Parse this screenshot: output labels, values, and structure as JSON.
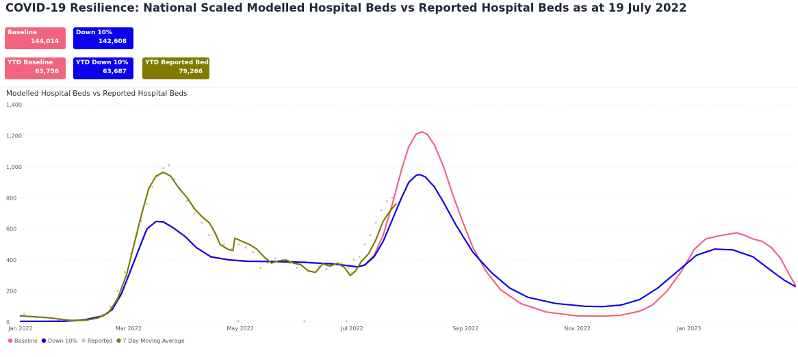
{
  "page": {
    "title": "COVID-19 Resilience: National Scaled Modelled Hospital Beds vs Reported Hospital Beds as at 19 July 2022"
  },
  "cards": [
    {
      "label": "Baseline",
      "value": "144,014",
      "color": "#f0647d"
    },
    {
      "label": "Down 10%",
      "value": "142,608",
      "color": "#0c00ec"
    },
    {
      "label": "YTD Baseline",
      "value": "63,756",
      "color": "#f0647d"
    },
    {
      "label": "YTD Down 10%",
      "value": "63,687",
      "color": "#0c00ec"
    },
    {
      "label": "YTD Reported Beds",
      "value": "79,266",
      "color": "#7f7a00"
    }
  ],
  "chart_data": {
    "type": "line",
    "title": "Modelled Hospital Beds vs Reported Hospital Beds",
    "xlabel": "",
    "ylabel": "",
    "xlim": [
      "2022-01-01",
      "2023-02-28"
    ],
    "ylim": [
      0,
      1400
    ],
    "y_ticks": [
      0,
      200,
      400,
      600,
      800,
      1000,
      1200,
      1400
    ],
    "y_tick_labels": [
      "0",
      "200",
      "400",
      "600",
      "800",
      "1,000",
      "1,200",
      "1,400"
    ],
    "x_ticks": [
      "2022-01-01",
      "2022-03-01",
      "2022-05-01",
      "2022-07-01",
      "2022-09-01",
      "2022-11-01",
      "2023-01-01"
    ],
    "x_tick_labels": [
      "Jan 2022",
      "Mar 2022",
      "May 2022",
      "Jul 2022",
      "Sep 2022",
      "Nov 2022",
      "Jan 2023"
    ],
    "grid": true,
    "legend_position": "bottom-left",
    "series": [
      {
        "name": "Baseline",
        "color": "#f0647d",
        "style": "line",
        "points": [
          [
            "2022-01-01",
            5
          ],
          [
            "2022-01-15",
            5
          ],
          [
            "2022-01-25",
            6
          ],
          [
            "2022-02-05",
            15
          ],
          [
            "2022-02-15",
            40
          ],
          [
            "2022-02-20",
            80
          ],
          [
            "2022-02-25",
            180
          ],
          [
            "2022-03-02",
            330
          ],
          [
            "2022-03-07",
            480
          ],
          [
            "2022-03-11",
            600
          ],
          [
            "2022-03-16",
            648
          ],
          [
            "2022-03-20",
            645
          ],
          [
            "2022-03-25",
            610
          ],
          [
            "2022-04-01",
            550
          ],
          [
            "2022-04-07",
            480
          ],
          [
            "2022-04-15",
            420
          ],
          [
            "2022-04-25",
            400
          ],
          [
            "2022-05-05",
            392
          ],
          [
            "2022-05-20",
            390
          ],
          [
            "2022-06-05",
            385
          ],
          [
            "2022-06-20",
            375
          ],
          [
            "2022-06-30",
            362
          ],
          [
            "2022-07-04",
            355
          ],
          [
            "2022-07-08",
            370
          ],
          [
            "2022-07-13",
            430
          ],
          [
            "2022-07-18",
            560
          ],
          [
            "2022-07-23",
            760
          ],
          [
            "2022-07-28",
            980
          ],
          [
            "2022-08-01",
            1130
          ],
          [
            "2022-08-05",
            1210
          ],
          [
            "2022-08-08",
            1225
          ],
          [
            "2022-08-11",
            1210
          ],
          [
            "2022-08-15",
            1140
          ],
          [
            "2022-08-20",
            1000
          ],
          [
            "2022-08-25",
            820
          ],
          [
            "2022-08-30",
            660
          ],
          [
            "2022-09-05",
            480
          ],
          [
            "2022-09-12",
            330
          ],
          [
            "2022-09-20",
            210
          ],
          [
            "2022-10-01",
            120
          ],
          [
            "2022-10-15",
            65
          ],
          [
            "2022-11-01",
            40
          ],
          [
            "2022-11-15",
            38
          ],
          [
            "2022-11-25",
            45
          ],
          [
            "2022-12-05",
            70
          ],
          [
            "2022-12-12",
            110
          ],
          [
            "2022-12-20",
            200
          ],
          [
            "2022-12-28",
            330
          ],
          [
            "2023-01-04",
            470
          ],
          [
            "2023-01-10",
            535
          ],
          [
            "2023-01-17",
            555
          ],
          [
            "2023-01-22",
            565
          ],
          [
            "2023-01-27",
            575
          ],
          [
            "2023-01-31",
            560
          ],
          [
            "2023-02-05",
            535
          ],
          [
            "2023-02-10",
            520
          ],
          [
            "2023-02-15",
            480
          ],
          [
            "2023-02-20",
            410
          ],
          [
            "2023-02-25",
            300
          ],
          [
            "2023-02-28",
            240
          ]
        ]
      },
      {
        "name": "Down 10%",
        "color": "#0c00ec",
        "style": "line",
        "points": [
          [
            "2022-01-01",
            5
          ],
          [
            "2022-01-15",
            5
          ],
          [
            "2022-01-25",
            6
          ],
          [
            "2022-02-05",
            15
          ],
          [
            "2022-02-15",
            40
          ],
          [
            "2022-02-20",
            80
          ],
          [
            "2022-02-25",
            180
          ],
          [
            "2022-03-02",
            330
          ],
          [
            "2022-03-07",
            480
          ],
          [
            "2022-03-11",
            600
          ],
          [
            "2022-03-16",
            648
          ],
          [
            "2022-03-20",
            645
          ],
          [
            "2022-03-25",
            610
          ],
          [
            "2022-04-01",
            550
          ],
          [
            "2022-04-07",
            480
          ],
          [
            "2022-04-15",
            420
          ],
          [
            "2022-04-25",
            400
          ],
          [
            "2022-05-05",
            392
          ],
          [
            "2022-05-20",
            390
          ],
          [
            "2022-06-05",
            385
          ],
          [
            "2022-06-20",
            375
          ],
          [
            "2022-06-30",
            362
          ],
          [
            "2022-07-04",
            355
          ],
          [
            "2022-07-08",
            368
          ],
          [
            "2022-07-13",
            420
          ],
          [
            "2022-07-18",
            520
          ],
          [
            "2022-07-23",
            660
          ],
          [
            "2022-07-28",
            800
          ],
          [
            "2022-08-01",
            900
          ],
          [
            "2022-08-05",
            945
          ],
          [
            "2022-08-07",
            950
          ],
          [
            "2022-08-10",
            935
          ],
          [
            "2022-08-15",
            870
          ],
          [
            "2022-08-20",
            770
          ],
          [
            "2022-08-27",
            620
          ],
          [
            "2022-09-05",
            450
          ],
          [
            "2022-09-15",
            320
          ],
          [
            "2022-09-25",
            220
          ],
          [
            "2022-10-05",
            160
          ],
          [
            "2022-10-20",
            120
          ],
          [
            "2022-11-05",
            102
          ],
          [
            "2022-11-15",
            100
          ],
          [
            "2022-11-25",
            110
          ],
          [
            "2022-12-05",
            145
          ],
          [
            "2022-12-15",
            220
          ],
          [
            "2022-12-25",
            320
          ],
          [
            "2023-01-05",
            430
          ],
          [
            "2023-01-15",
            470
          ],
          [
            "2023-01-25",
            465
          ],
          [
            "2023-02-05",
            420
          ],
          [
            "2023-02-15",
            330
          ],
          [
            "2023-02-22",
            270
          ],
          [
            "2023-02-28",
            230
          ]
        ]
      },
      {
        "name": "Reported",
        "color": "#c8c8c8",
        "style": "dots",
        "points": [
          [
            "2022-01-01",
            40
          ],
          [
            "2022-01-03",
            50
          ],
          [
            "2022-01-06",
            35
          ],
          [
            "2022-01-10",
            30
          ],
          [
            "2022-01-14",
            28
          ],
          [
            "2022-01-18",
            25
          ],
          [
            "2022-01-22",
            12
          ],
          [
            "2022-01-26",
            8
          ],
          [
            "2022-01-30",
            10
          ],
          [
            "2022-02-03",
            12
          ],
          [
            "2022-02-07",
            15
          ],
          [
            "2022-02-11",
            30
          ],
          [
            "2022-02-15",
            50
          ],
          [
            "2022-02-19",
            100
          ],
          [
            "2022-02-23",
            200
          ],
          [
            "2022-02-27",
            320
          ],
          [
            "2022-03-02",
            440
          ],
          [
            "2022-03-05",
            550
          ],
          [
            "2022-03-08",
            650
          ],
          [
            "2022-03-11",
            760
          ],
          [
            "2022-03-14",
            870
          ],
          [
            "2022-03-17",
            940
          ],
          [
            "2022-03-20",
            990
          ],
          [
            "2022-03-23",
            1010
          ],
          [
            "2022-03-26",
            920
          ],
          [
            "2022-03-29",
            860
          ],
          [
            "2022-04-02",
            780
          ],
          [
            "2022-04-06",
            700
          ],
          [
            "2022-04-10",
            640
          ],
          [
            "2022-04-14",
            560
          ],
          [
            "2022-04-18",
            560
          ],
          [
            "2022-04-22",
            500
          ],
          [
            "2022-04-26",
            470
          ],
          [
            "2022-04-30",
            500
          ],
          [
            "2022-05-04",
            480
          ],
          [
            "2022-05-08",
            450
          ],
          [
            "2022-05-12",
            350
          ],
          [
            "2022-05-16",
            380
          ],
          [
            "2022-05-20",
            410
          ],
          [
            "2022-05-24",
            400
          ],
          [
            "2022-05-28",
            380
          ],
          [
            "2022-06-01",
            350
          ],
          [
            "2022-06-05",
            390
          ],
          [
            "2022-06-09",
            380
          ],
          [
            "2022-06-13",
            360
          ],
          [
            "2022-06-17",
            340
          ],
          [
            "2022-06-21",
            370
          ],
          [
            "2022-06-25",
            380
          ],
          [
            "2022-06-29",
            350
          ],
          [
            "2022-07-02",
            400
          ],
          [
            "2022-07-05",
            420
          ],
          [
            "2022-07-08",
            500
          ],
          [
            "2022-07-11",
            560
          ],
          [
            "2022-07-14",
            640
          ],
          [
            "2022-07-17",
            720
          ],
          [
            "2022-07-20",
            780
          ],
          [
            "2022-07-23",
            800
          ],
          [
            "2022-04-30",
            5
          ],
          [
            "2022-06-05",
            5
          ],
          [
            "2022-06-28",
            5
          ]
        ]
      },
      {
        "name": "7 Day Moving Average",
        "color": "#7f7a00",
        "style": "line",
        "points": [
          [
            "2022-01-01",
            40
          ],
          [
            "2022-01-08",
            35
          ],
          [
            "2022-01-15",
            30
          ],
          [
            "2022-01-22",
            20
          ],
          [
            "2022-01-28",
            12
          ],
          [
            "2022-02-05",
            12
          ],
          [
            "2022-02-12",
            25
          ],
          [
            "2022-02-18",
            60
          ],
          [
            "2022-02-23",
            150
          ],
          [
            "2022-02-28",
            310
          ],
          [
            "2022-03-04",
            500
          ],
          [
            "2022-03-08",
            690
          ],
          [
            "2022-03-12",
            860
          ],
          [
            "2022-03-16",
            940
          ],
          [
            "2022-03-20",
            965
          ],
          [
            "2022-03-24",
            940
          ],
          [
            "2022-03-28",
            870
          ],
          [
            "2022-04-02",
            800
          ],
          [
            "2022-04-06",
            730
          ],
          [
            "2022-04-10",
            680
          ],
          [
            "2022-04-14",
            640
          ],
          [
            "2022-04-17",
            580
          ],
          [
            "2022-04-20",
            500
          ],
          [
            "2022-04-24",
            470
          ],
          [
            "2022-04-27",
            460
          ],
          [
            "2022-04-28",
            540
          ],
          [
            "2022-05-02",
            520
          ],
          [
            "2022-05-06",
            500
          ],
          [
            "2022-05-10",
            470
          ],
          [
            "2022-05-14",
            420
          ],
          [
            "2022-05-18",
            380
          ],
          [
            "2022-05-22",
            395
          ],
          [
            "2022-05-26",
            400
          ],
          [
            "2022-05-30",
            380
          ],
          [
            "2022-06-03",
            370
          ],
          [
            "2022-06-07",
            330
          ],
          [
            "2022-06-11",
            320
          ],
          [
            "2022-06-15",
            375
          ],
          [
            "2022-06-19",
            360
          ],
          [
            "2022-06-23",
            380
          ],
          [
            "2022-06-27",
            350
          ],
          [
            "2022-06-30",
            300
          ],
          [
            "2022-07-03",
            330
          ],
          [
            "2022-07-06",
            390
          ],
          [
            "2022-07-10",
            440
          ],
          [
            "2022-07-14",
            530
          ],
          [
            "2022-07-18",
            650
          ],
          [
            "2022-07-22",
            720
          ],
          [
            "2022-07-25",
            760
          ]
        ]
      }
    ]
  }
}
